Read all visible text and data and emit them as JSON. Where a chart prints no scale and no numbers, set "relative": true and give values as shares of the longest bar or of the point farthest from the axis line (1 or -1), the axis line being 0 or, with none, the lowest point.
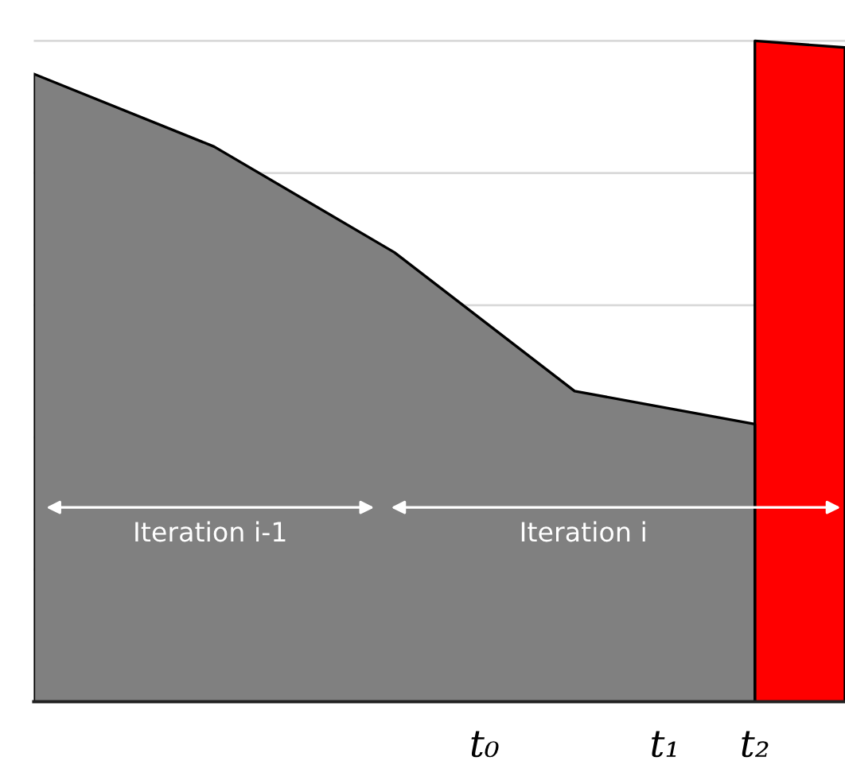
{
  "chart_data": {
    "type": "area",
    "relative": true,
    "categories": [
      null,
      null,
      null,
      null,
      null,
      "t₀",
      null,
      "t₁",
      "t₂",
      null
    ],
    "series": [
      {
        "color": "#808080",
        "values": [
          0.95,
          null,
          0.84,
          null,
          0.68,
          null,
          0.47,
          null,
          0.42,
          null
        ]
      },
      {
        "color": "#ff0000",
        "values": [
          null,
          null,
          null,
          null,
          null,
          null,
          null,
          null,
          1.0,
          0.99
        ]
      }
    ],
    "annotations": [
      "Iteration i-1",
      "Iteration i"
    ],
    "grid": "y",
    "legend": false
  }
}
